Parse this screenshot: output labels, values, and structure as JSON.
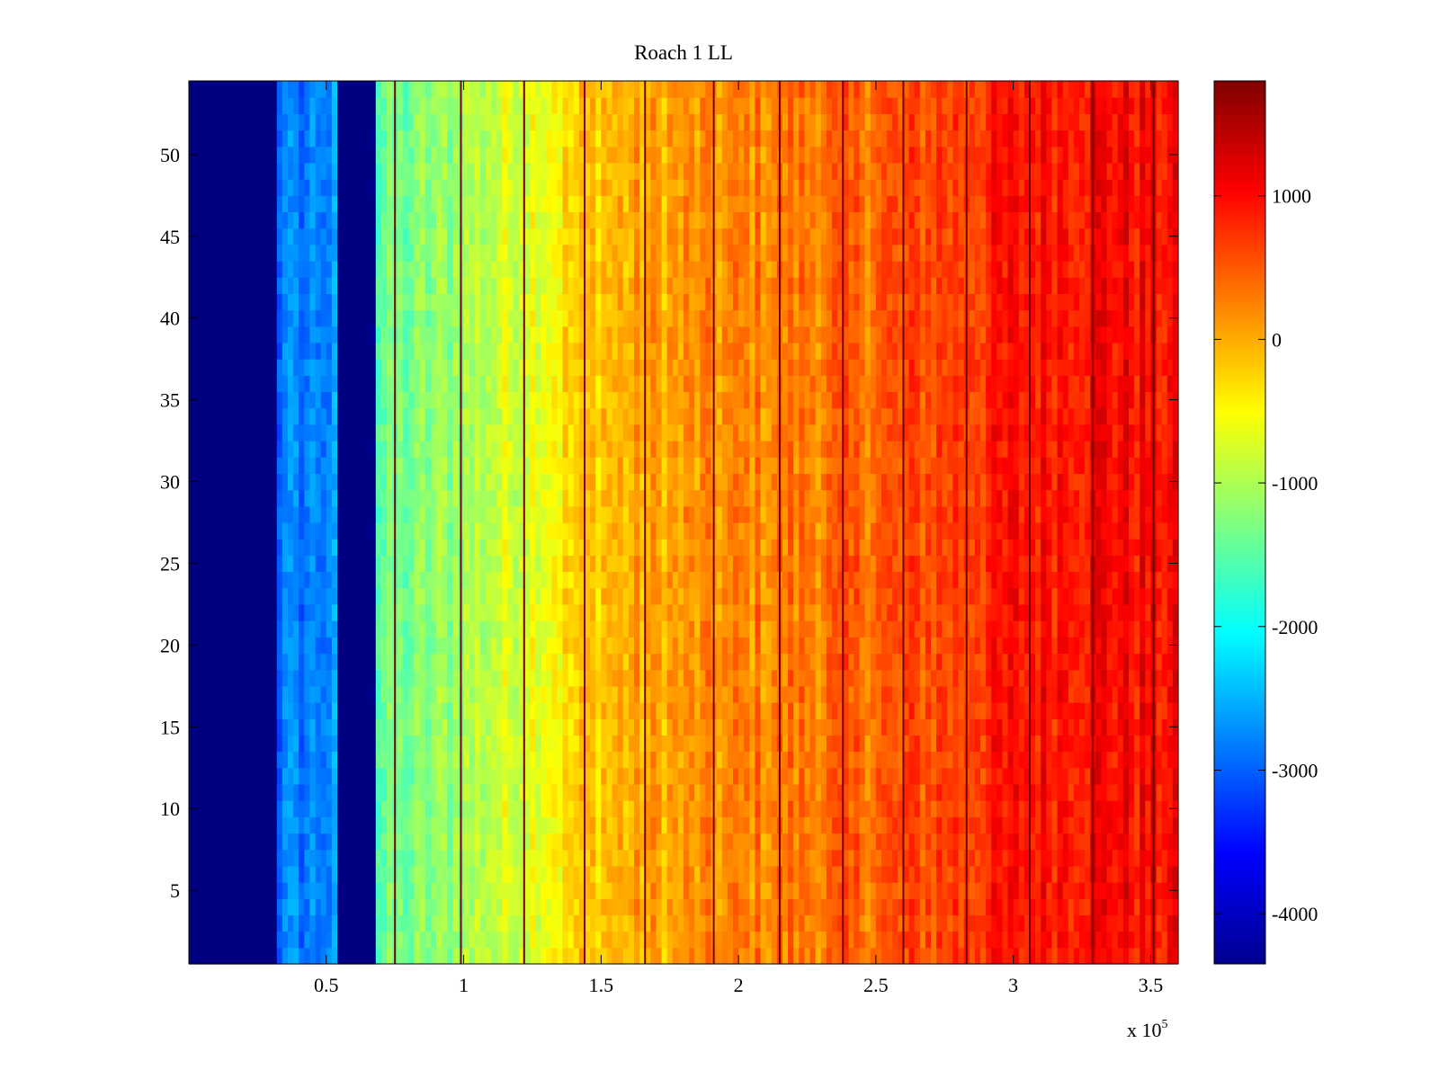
{
  "chart_data": {
    "type": "heatmap",
    "title": "Roach 1 LL",
    "xlabel": "",
    "ylabel": "",
    "x_exponent_label": {
      "base": "x 10",
      "power": "5"
    },
    "xlim": [
      0,
      360000
    ],
    "ylim": [
      0.5,
      54.5
    ],
    "x_ticks": [
      50000,
      100000,
      150000,
      200000,
      250000,
      300000,
      350000
    ],
    "x_tick_labels": [
      "0.5",
      "1",
      "1.5",
      "2",
      "2.5",
      "3",
      "3.5"
    ],
    "y_ticks": [
      5,
      10,
      15,
      20,
      25,
      30,
      35,
      40,
      45,
      50
    ],
    "y_tick_labels": [
      "5",
      "10",
      "15",
      "20",
      "25",
      "30",
      "35",
      "40",
      "45",
      "50"
    ],
    "rows": 54,
    "colormap": "jet",
    "clim": [
      -4350,
      1800
    ],
    "colorbar_ticks": [
      1000,
      0,
      -1000,
      -2000,
      -3000,
      -4000
    ],
    "colorbar_tick_labels": [
      "1000",
      "0",
      "-1000",
      "-2000",
      "-3000",
      "-4000"
    ],
    "value_profile": {
      "x": [
        0,
        32000,
        33000,
        55000,
        67000,
        69000,
        90000,
        120000,
        150000,
        200000,
        250000,
        280000,
        300000,
        330000,
        360000
      ],
      "value": [
        -4350,
        -4350,
        -2900,
        -2700,
        -4350,
        -1500,
        -1200,
        -700,
        -100,
        200,
        450,
        700,
        900,
        1050,
        950
      ]
    },
    "dead_bands": [
      [
        0,
        32000
      ],
      [
        55000,
        67000
      ]
    ],
    "dark_lines_x": [
      75000,
      99000,
      122000,
      144000,
      166000,
      191000,
      215000,
      238000,
      260000,
      283000,
      306000,
      329000,
      351000
    ]
  }
}
